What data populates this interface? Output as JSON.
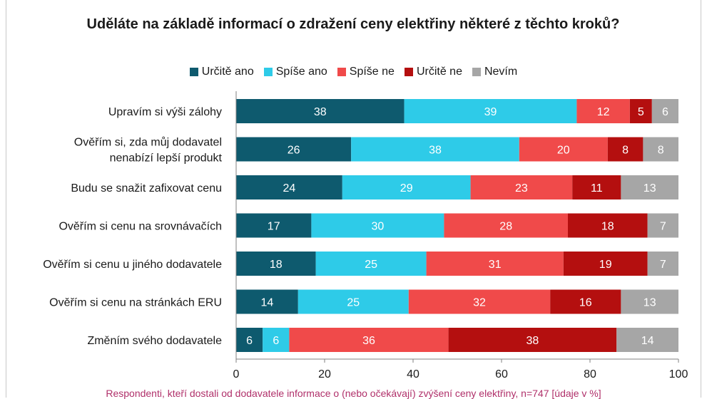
{
  "chart_data": {
    "type": "bar",
    "orientation": "horizontal-stacked-100",
    "title": "Uděláte na základě informací o zdražení ceny elektřiny některé z těchto kroků?",
    "categories": [
      "Upravím si výši zálohy",
      "Ověřím si, zda můj dodavatel nenabízí lepší produkt",
      "Budu se snažit zafixovat cenu",
      "Ověřím si cenu na srovnávačích",
      "Ověřím si cenu u jiného dodavatele",
      "Ověřím si cenu na stránkách ERU",
      "Změním svého dodavatele"
    ],
    "series": [
      {
        "name": "Určitě ano",
        "color": "#0e5a6e",
        "values": [
          38,
          26,
          24,
          17,
          18,
          14,
          6
        ]
      },
      {
        "name": "Spíše ano",
        "color": "#2ecbe8",
        "values": [
          39,
          38,
          29,
          30,
          25,
          25,
          6
        ]
      },
      {
        "name": "Spíše ne",
        "color": "#f04a4a",
        "values": [
          12,
          20,
          23,
          28,
          31,
          32,
          36
        ]
      },
      {
        "name": "Určitě ne",
        "color": "#b40f0f",
        "values": [
          5,
          8,
          11,
          18,
          19,
          16,
          38
        ]
      },
      {
        "name": "Nevím",
        "color": "#a6a6a6",
        "values": [
          6,
          8,
          13,
          7,
          7,
          13,
          14
        ]
      }
    ],
    "xlim": [
      0,
      100
    ],
    "xticks": [
      0,
      20,
      40,
      60,
      80,
      100
    ],
    "legend_position": "top",
    "grid": false,
    "footnote": "Respondenti, kteří dostali od dodavatele informace o (nebo očekávají) zvýšení ceny elektřiny, n=747 [údaje v %]"
  }
}
